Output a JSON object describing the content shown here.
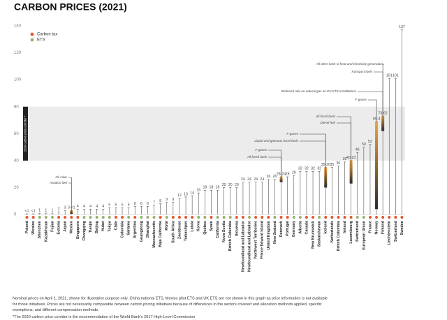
{
  "chart_data": {
    "type": "lollipop",
    "title": "CARBON PRICES (2021)",
    "series": [
      {
        "name": "Carbon tax",
        "color": "#e4572e"
      },
      {
        "name": "ETS",
        "color": "#98b06f"
      }
    ],
    "categories": [
      "Poland",
      "Ukraine",
      "Shenzhen",
      "Kazakhstan",
      "Fujian",
      "Estonia",
      "Japan",
      "Mexico",
      "Singapore",
      "Chongqing",
      "Tianjin",
      "Beijing",
      "Hubei",
      "Tokyo",
      "Chile",
      "Colombia",
      "Saitama",
      "Argentina",
      "Guangdong",
      "Shanghai",
      "Massachusetts",
      "Baja California",
      "RGGI",
      "South Africa",
      "Zacatecas",
      "Tamaulipas",
      "Latvia",
      "Korea",
      "Québec",
      "Spain",
      "California",
      "Nova Scotia",
      "British Columbia",
      "Slovenia",
      "Newfoundland and Labrador",
      "Newfoundland and Labrador",
      "Northwest Territories",
      "Prince Edward Island",
      "United Kingdom",
      "New Zealand",
      "Denmark",
      "Portugal",
      "Germany",
      "Alberta",
      "Canada",
      "New Brunswick",
      "Saskatchewan",
      "Iceland",
      "Netherlands",
      "British Columbia",
      "Ireland",
      "Luxembourg",
      "Switzerland",
      "European Union",
      "France",
      "Norway",
      "Finland",
      "Liechtenstein",
      "Switzerland",
      "Sweden"
    ],
    "category_types": [
      "Carbon tax",
      "Carbon tax",
      "ETS",
      "ETS",
      "ETS",
      "Carbon tax",
      "Carbon tax",
      "Carbon tax",
      "Carbon tax",
      "ETS",
      "ETS",
      "ETS",
      "ETS",
      "ETS",
      "Carbon tax",
      "Carbon tax",
      "ETS",
      "Carbon tax",
      "ETS",
      "ETS",
      "ETS",
      "Carbon tax",
      "ETS",
      "Carbon tax",
      "Carbon tax",
      "Carbon tax",
      "Carbon tax",
      "ETS",
      "ETS",
      "Carbon tax",
      "ETS",
      "ETS",
      "ETS",
      "Carbon tax",
      "Carbon tax",
      "ETS",
      "Carbon tax",
      "Carbon tax",
      "Carbon tax",
      "ETS",
      "Carbon tax",
      "Carbon tax",
      "ETS",
      "ETS",
      "Carbon tax",
      "Carbon tax",
      "ETS",
      "Carbon tax",
      "Carbon tax",
      "Carbon tax",
      "Carbon tax",
      "Carbon tax",
      "ETS",
      "ETS",
      "Carbon tax",
      "Carbon tax",
      "Carbon tax",
      "Carbon tax",
      "Carbon tax",
      "Carbon tax"
    ],
    "values": [
      0.5,
      0.5,
      1,
      1,
      1,
      2,
      3,
      3,
      4,
      4,
      4,
      4,
      4,
      5,
      5,
      5,
      5,
      6,
      6,
      6,
      7,
      8,
      9,
      9,
      12,
      13,
      14,
      16,
      18,
      18,
      18,
      20,
      20,
      20,
      24,
      24,
      24,
      24,
      26,
      26,
      28,
      28,
      29,
      32,
      32,
      32,
      32,
      35,
      35,
      36,
      39,
      40,
      46,
      50,
      52,
      69,
      73,
      101,
      101,
      137
    ],
    "range_low": [
      null,
      null,
      null,
      null,
      null,
      null,
      null,
      0.5,
      null,
      null,
      null,
      null,
      null,
      null,
      null,
      null,
      null,
      null,
      null,
      null,
      null,
      null,
      null,
      null,
      null,
      null,
      null,
      null,
      null,
      null,
      null,
      null,
      null,
      null,
      null,
      null,
      null,
      null,
      null,
      null,
      24,
      null,
      null,
      null,
      null,
      null,
      null,
      20,
      null,
      null,
      null,
      23,
      null,
      null,
      null,
      4,
      62,
      null,
      null,
      null
    ],
    "value_labels": [
      "<1",
      "<1",
      null,
      null,
      null,
      null,
      null,
      "3-<1",
      null,
      null,
      null,
      null,
      null,
      null,
      null,
      null,
      null,
      null,
      null,
      null,
      null,
      null,
      null,
      null,
      null,
      null,
      null,
      null,
      null,
      null,
      null,
      null,
      null,
      null,
      null,
      null,
      null,
      null,
      null,
      null,
      "28-24",
      null,
      null,
      null,
      null,
      null,
      null,
      "35-20",
      null,
      null,
      null,
      "40-23",
      null,
      null,
      null,
      "69-4",
      "73-62",
      null,
      null,
      null
    ],
    "ylim": [
      0,
      140
    ],
    "yticks": [
      0,
      20,
      40,
      60,
      80,
      100,
      120,
      140
    ],
    "corridor": [
      40,
      80
    ],
    "corridor_label": "2020 carbon price corridor *",
    "annotations": [
      "Oil coke",
      "Aviation fuel",
      "F-gases",
      "All fossil fuels",
      "Liquid and gaseous fossil fuels",
      "F-gases",
      "All fossil fuels",
      "Diesel fuel",
      "F-gases",
      "Reduced rate on natural gas on EU ETS installations",
      "Transport fuels",
      "All other fuels in heat and electricity generation"
    ],
    "notes": [
      "Nominal prices on April 1, 2021, shown for illustrative purpose only. China national ETS, Mexico pilot ETS and UK ETS are not shown in this graph as price information is not available",
      "for those initiatives. Prices are not necessarily comparable between carbon pricing initiatives because of differences in the sectors covered and allocation methods applied, specific",
      "exemptions, and different compensation methods.",
      "*The 2020 carbon price corridor is the recommendation of the World Bank's 2017 High-Level Commission"
    ]
  }
}
